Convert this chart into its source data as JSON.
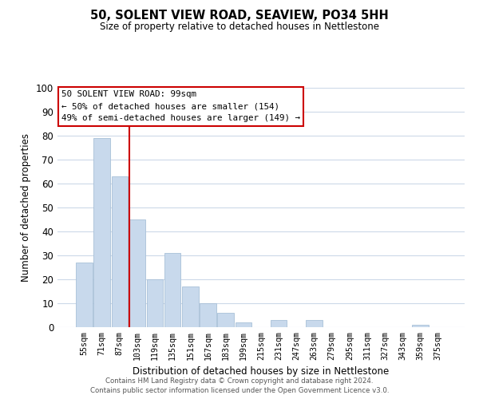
{
  "title": "50, SOLENT VIEW ROAD, SEAVIEW, PO34 5HH",
  "subtitle": "Size of property relative to detached houses in Nettlestone",
  "xlabel": "Distribution of detached houses by size in Nettlestone",
  "ylabel": "Number of detached properties",
  "bar_labels": [
    "55sqm",
    "71sqm",
    "87sqm",
    "103sqm",
    "119sqm",
    "135sqm",
    "151sqm",
    "167sqm",
    "183sqm",
    "199sqm",
    "215sqm",
    "231sqm",
    "247sqm",
    "263sqm",
    "279sqm",
    "295sqm",
    "311sqm",
    "327sqm",
    "343sqm",
    "359sqm",
    "375sqm"
  ],
  "bar_values": [
    27,
    79,
    63,
    45,
    20,
    31,
    17,
    10,
    6,
    2,
    0,
    3,
    0,
    3,
    0,
    0,
    0,
    0,
    0,
    1,
    0
  ],
  "bar_color": "#c8d9ec",
  "bar_edge_color": "#a8c0d8",
  "ylim": [
    0,
    100
  ],
  "yticks": [
    0,
    10,
    20,
    30,
    40,
    50,
    60,
    70,
    80,
    90,
    100
  ],
  "vline_color": "#cc0000",
  "annotation_title": "50 SOLENT VIEW ROAD: 99sqm",
  "annotation_line1": "← 50% of detached houses are smaller (154)",
  "annotation_line2": "49% of semi-detached houses are larger (149) →",
  "annotation_box_facecolor": "#ffffff",
  "annotation_box_edgecolor": "#cc0000",
  "footnote1": "Contains HM Land Registry data © Crown copyright and database right 2024.",
  "footnote2": "Contains public sector information licensed under the Open Government Licence v3.0.",
  "background_color": "#ffffff",
  "grid_color": "#ccd9e8"
}
